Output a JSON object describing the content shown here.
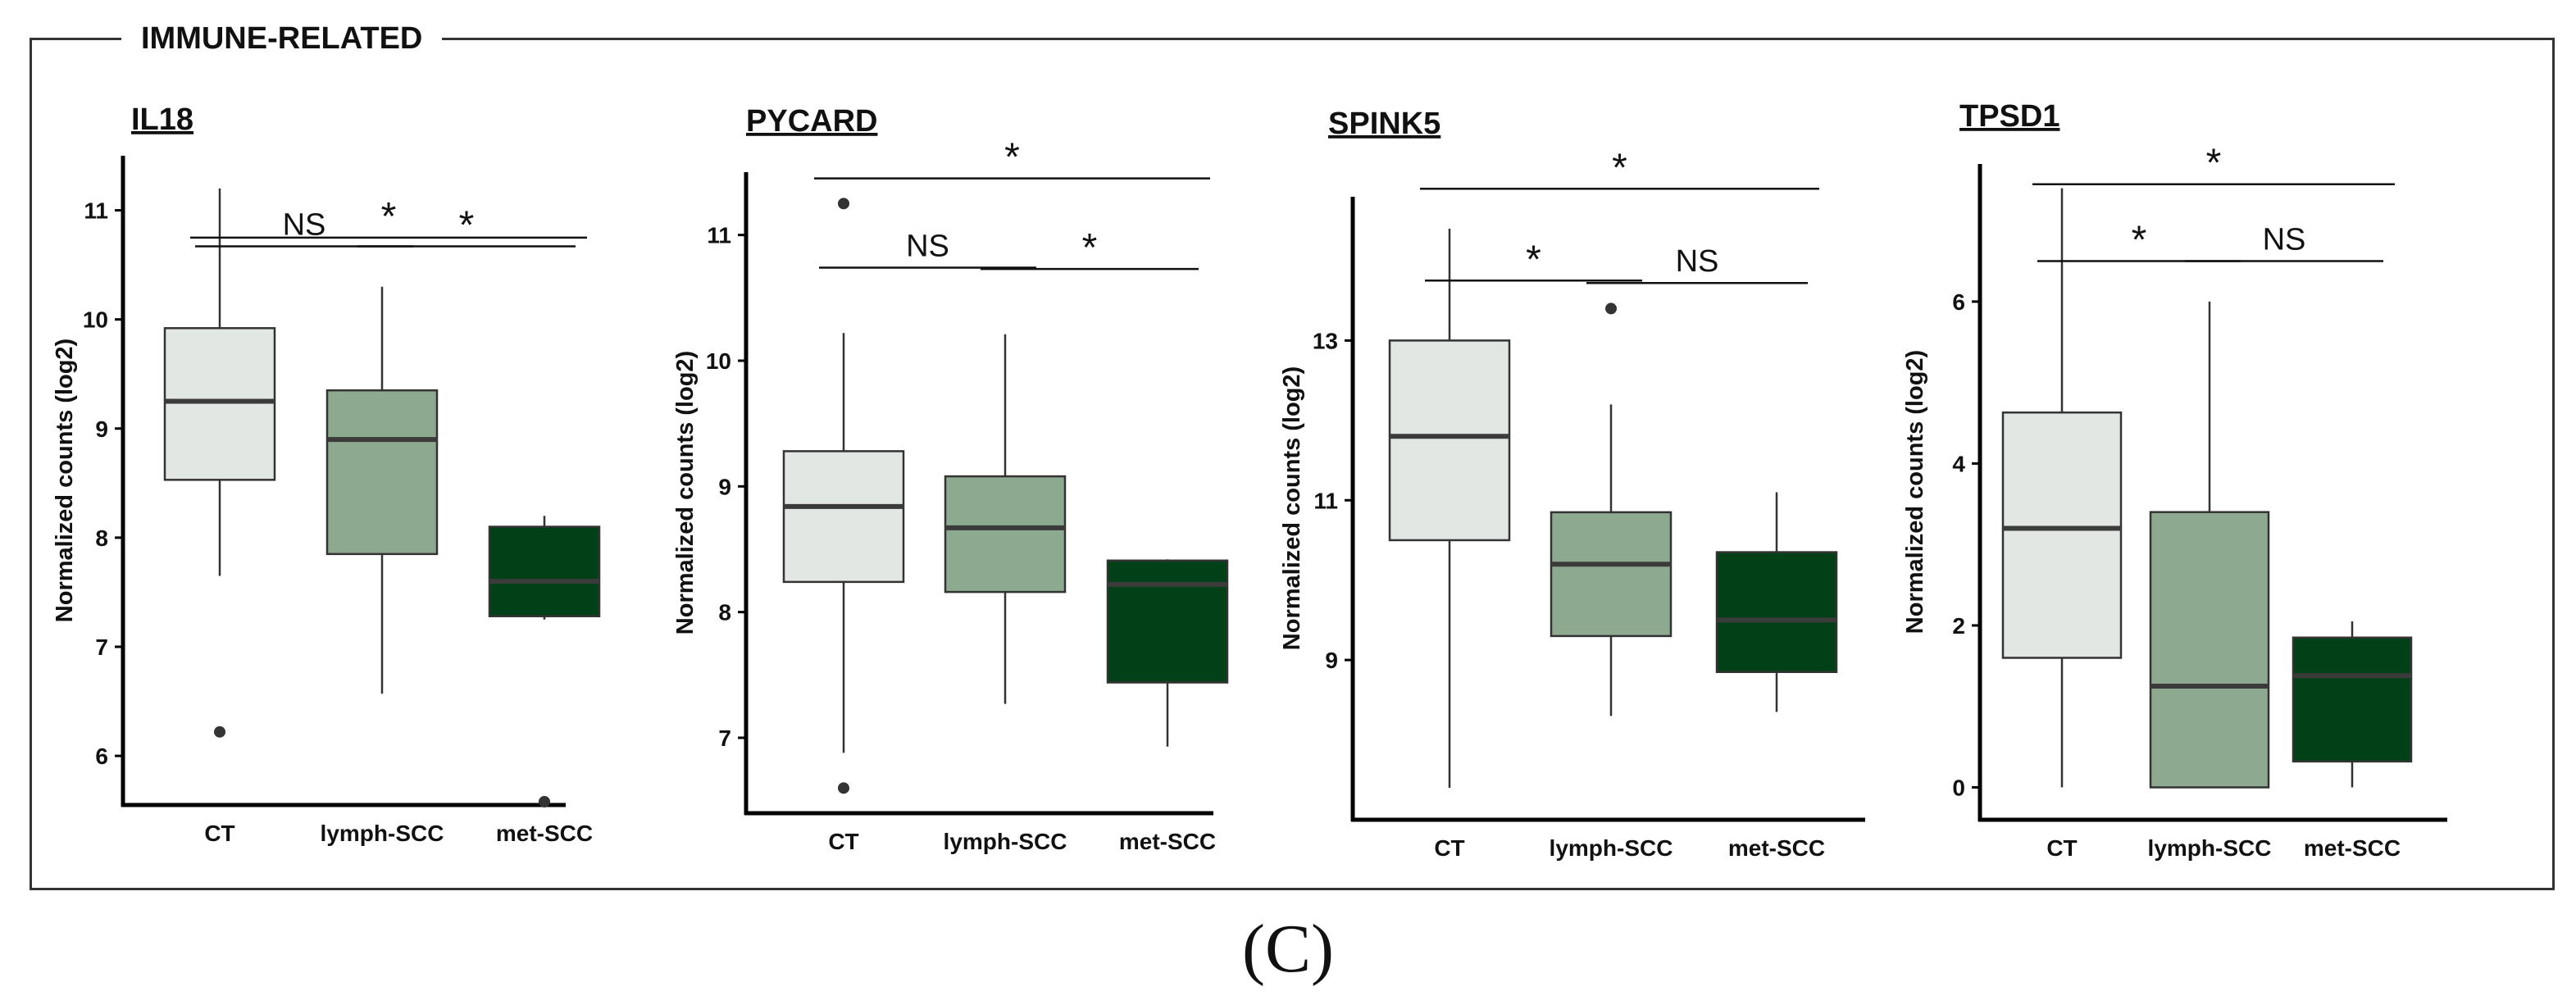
{
  "section_title": "IMMUNE-RELATED",
  "figure_label": "(C)",
  "colors": {
    "ct": "#e3e7e4",
    "lymph": "#8daa90",
    "met": "#024117",
    "line": "#000000",
    "median": "#3b3b3b"
  },
  "chart_data": [
    {
      "type": "boxplot",
      "title": "IL18",
      "ylabel": "Normalized counts (log2)",
      "categories": [
        "CT",
        "lymph-SCC",
        "met-SCC"
      ],
      "ylim": [
        5.55,
        11.5
      ],
      "yticks": [
        6,
        7,
        8,
        9,
        10,
        11
      ],
      "boxes": [
        {
          "category": "CT",
          "whisker_low": 7.65,
          "q1": 8.53,
          "median": 9.25,
          "q3": 9.92,
          "whisker_high": 11.2,
          "outliers": [
            6.22
          ]
        },
        {
          "category": "lymph-SCC",
          "whisker_low": 6.57,
          "q1": 7.85,
          "median": 8.9,
          "q3": 9.35,
          "whisker_high": 10.3,
          "outliers": []
        },
        {
          "category": "met-SCC",
          "whisker_low": 7.25,
          "q1": 7.28,
          "median": 7.6,
          "q3": 8.1,
          "whisker_high": 8.2,
          "outliers": [
            5.58
          ]
        }
      ],
      "comparisons": [
        {
          "from": "CT",
          "to": "met-SCC",
          "label": "*",
          "y": 10.75
        },
        {
          "from": "CT",
          "to": "lymph-SCC",
          "label": "NS",
          "y": 10.67
        },
        {
          "from": "lymph-SCC",
          "to": "met-SCC",
          "label": "*",
          "y": 10.67
        }
      ]
    },
    {
      "type": "boxplot",
      "title": "PYCARD",
      "ylabel": "Normalized counts (log2)",
      "categories": [
        "CT",
        "lymph-SCC",
        "met-SCC"
      ],
      "ylim": [
        6.4,
        11.5
      ],
      "yticks": [
        7,
        8,
        9,
        10,
        11
      ],
      "boxes": [
        {
          "category": "CT",
          "whisker_low": 6.88,
          "q1": 8.24,
          "median": 8.84,
          "q3": 9.28,
          "whisker_high": 10.22,
          "outliers": [
            6.6,
            11.25
          ]
        },
        {
          "category": "lymph-SCC",
          "whisker_low": 7.27,
          "q1": 8.16,
          "median": 8.67,
          "q3": 9.08,
          "whisker_high": 10.21,
          "outliers": []
        },
        {
          "category": "met-SCC",
          "whisker_low": 6.93,
          "q1": 7.44,
          "median": 8.22,
          "q3": 8.41,
          "whisker_high": 8.42,
          "outliers": []
        }
      ],
      "comparisons": [
        {
          "from": "CT",
          "to": "met-SCC",
          "label": "*",
          "y": 11.45
        },
        {
          "from": "CT",
          "to": "lymph-SCC",
          "label": "NS",
          "y": 10.74
        },
        {
          "from": "lymph-SCC",
          "to": "met-SCC",
          "label": "*",
          "y": 10.73
        }
      ]
    },
    {
      "type": "boxplot",
      "title": "SPINK5",
      "ylabel": "Normalized counts (log2)",
      "categories": [
        "CT",
        "lymph-SCC",
        "met-SCC"
      ],
      "ylim": [
        7.0,
        14.8
      ],
      "yticks": [
        9,
        11,
        13
      ],
      "boxes": [
        {
          "category": "CT",
          "whisker_low": 7.4,
          "q1": 10.5,
          "median": 11.8,
          "q3": 13.0,
          "whisker_high": 14.4,
          "outliers": []
        },
        {
          "category": "lymph-SCC",
          "whisker_low": 8.3,
          "q1": 9.3,
          "median": 10.2,
          "q3": 10.85,
          "whisker_high": 12.2,
          "outliers": [
            13.4
          ]
        },
        {
          "category": "met-SCC",
          "whisker_low": 8.35,
          "q1": 8.85,
          "median": 9.5,
          "q3": 10.35,
          "whisker_high": 11.1,
          "outliers": []
        }
      ],
      "comparisons": [
        {
          "from": "CT",
          "to": "met-SCC",
          "label": "*",
          "y": 14.9
        },
        {
          "from": "CT",
          "to": "lymph-SCC",
          "label": "*",
          "y": 13.75
        },
        {
          "from": "lymph-SCC",
          "to": "met-SCC",
          "label": "NS",
          "y": 13.72
        }
      ]
    },
    {
      "type": "boxplot",
      "title": "TPSD1",
      "ylabel": "Normalized counts (log2)",
      "categories": [
        "CT",
        "lymph-SCC",
        "met-SCC"
      ],
      "ylim": [
        -0.4,
        7.7
      ],
      "yticks": [
        0,
        2,
        4,
        6
      ],
      "boxes": [
        {
          "category": "CT",
          "whisker_low": 0.0,
          "q1": 1.6,
          "median": 3.2,
          "q3": 4.63,
          "whisker_high": 7.4,
          "outliers": []
        },
        {
          "category": "lymph-SCC",
          "whisker_low": 0.0,
          "q1": 0.0,
          "median": 1.25,
          "q3": 3.4,
          "whisker_high": 6.0,
          "outliers": []
        },
        {
          "category": "met-SCC",
          "whisker_low": 0.0,
          "q1": 0.32,
          "median": 1.38,
          "q3": 1.85,
          "whisker_high": 2.05,
          "outliers": []
        }
      ],
      "comparisons": [
        {
          "from": "CT",
          "to": "met-SCC",
          "label": "*",
          "y": 7.45
        },
        {
          "from": "CT",
          "to": "lymph-SCC",
          "label": "*",
          "y": 6.5
        },
        {
          "from": "lymph-SCC",
          "to": "met-SCC",
          "label": "NS",
          "y": 6.5
        }
      ]
    }
  ]
}
